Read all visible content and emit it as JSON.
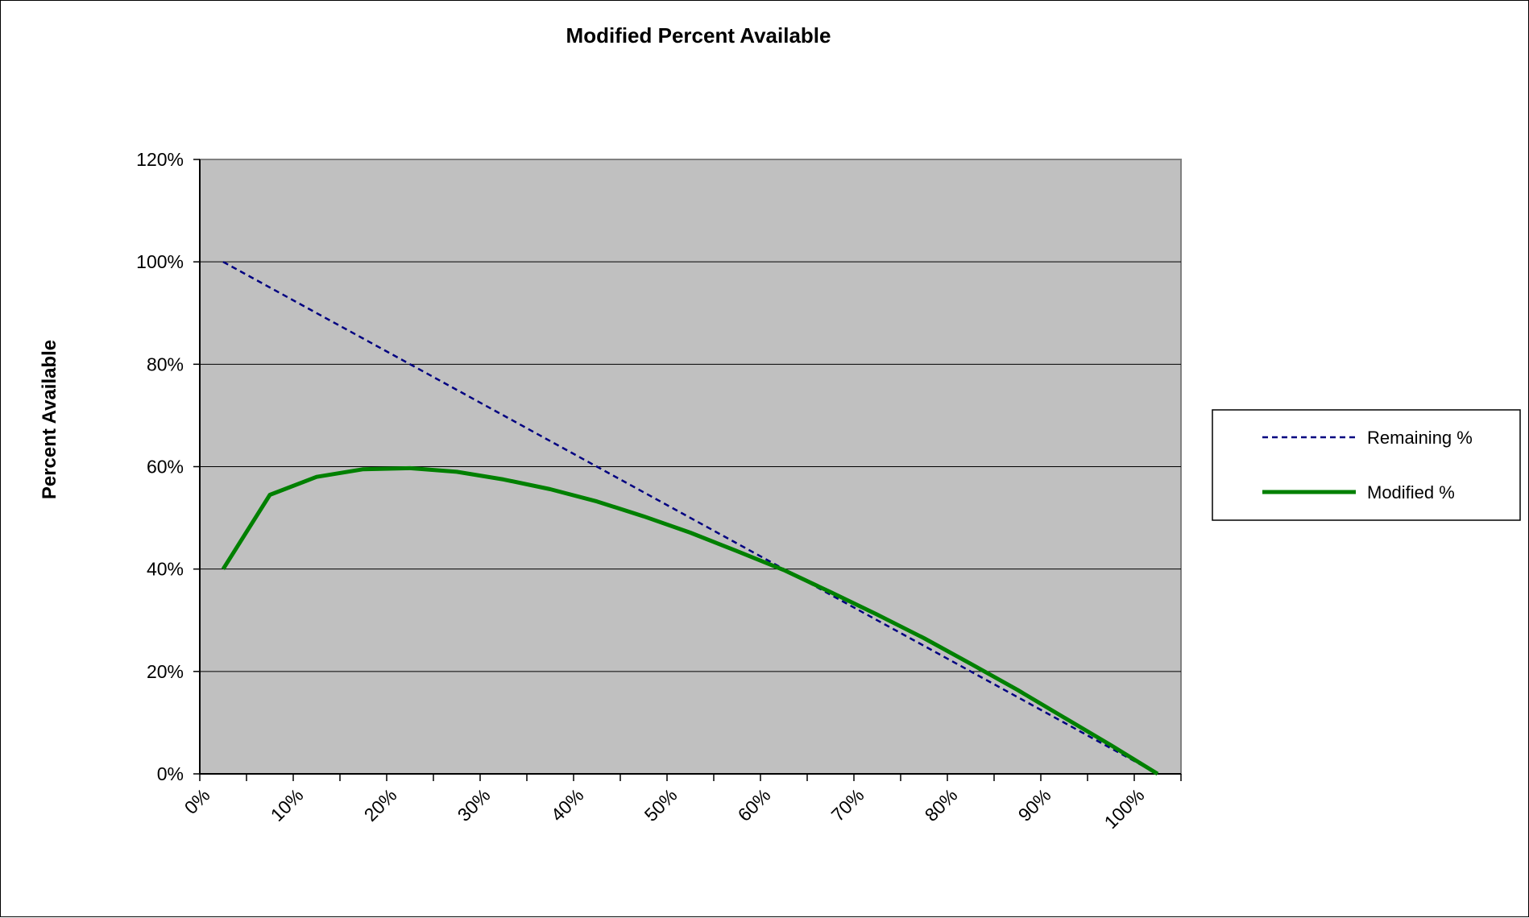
{
  "chart_data": {
    "type": "line",
    "title": "Modified Percent Available",
    "xlabel": "",
    "ylabel": "Percent Available",
    "x_tick_labels": [
      "0%",
      "10%",
      "20%",
      "30%",
      "40%",
      "50%",
      "60%",
      "70%",
      "80%",
      "90%",
      "100%"
    ],
    "y_tick_labels": [
      "0%",
      "20%",
      "40%",
      "60%",
      "80%",
      "100%",
      "120%"
    ],
    "ylim": [
      0,
      120
    ],
    "xlim": [
      0,
      105
    ],
    "grid": true,
    "legend_position": "right",
    "x": [
      2.5,
      7.5,
      12.5,
      17.5,
      22.5,
      27.5,
      32.5,
      37.5,
      42.5,
      47.5,
      52.5,
      57.5,
      62.5,
      67.5,
      72.5,
      77.5,
      82.5,
      87.5,
      92.5,
      97.5,
      102.5
    ],
    "series": [
      {
        "name": "Remaining %",
        "color": "#000080",
        "style": "dashed",
        "values": [
          100,
          95,
          90,
          85,
          80,
          75,
          70,
          65,
          60,
          55,
          50,
          45,
          40,
          35,
          30,
          25,
          20,
          15,
          10,
          5,
          0
        ]
      },
      {
        "name": "Modified %",
        "color": "#008000",
        "style": "solid",
        "values": [
          40,
          54.5,
          58,
          59.5,
          59.7,
          59,
          57.5,
          55.6,
          53.2,
          50.3,
          47.1,
          43.5,
          39.8,
          35.5,
          31.1,
          26.5,
          21.5,
          16.4,
          11,
          5.6,
          0
        ]
      }
    ],
    "colors": {
      "plot_background": "#c0c0c0",
      "gridline": "#000000",
      "axis": "#000000"
    }
  }
}
